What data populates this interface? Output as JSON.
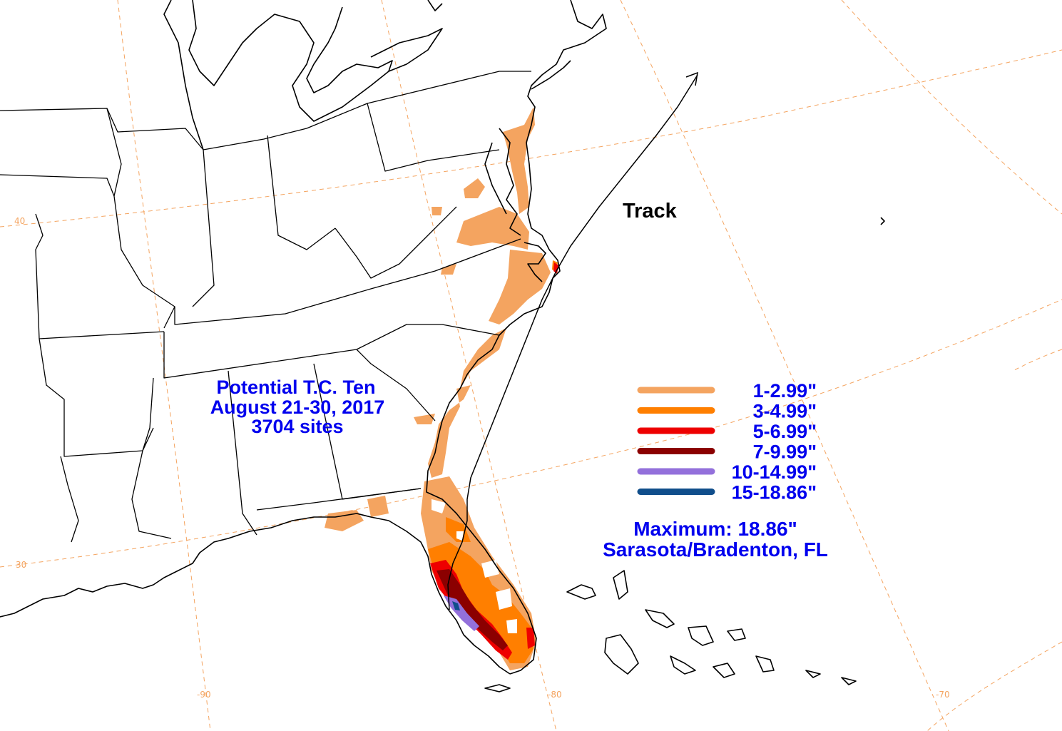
{
  "title": {
    "line1": "Potential T.C. Ten",
    "line2": "August 21-30, 2017",
    "line3": "3704 sites"
  },
  "track_label": "Track",
  "legend": [
    {
      "label": "1-2.99\"",
      "color": "#f4a460"
    },
    {
      "label": "3-4.99\"",
      "color": "#ff7f00"
    },
    {
      "label": "5-6.99\"",
      "color": "#ee0000"
    },
    {
      "label": "7-9.99\"",
      "color": "#8b0000"
    },
    {
      "label": "10-14.99\"",
      "color": "#9370db"
    },
    {
      "label": "15-18.86\"",
      "color": "#104e8b"
    }
  ],
  "maximum": {
    "line1": "Maximum: 18.86\"",
    "line2": "Sarasota/Bradenton, FL"
  },
  "grid_labels": {
    "lat30": "30",
    "lat40": "40",
    "lon90": "-90",
    "lon80": "-80",
    "lon70": "-70"
  },
  "colors": {
    "text": "#0000ee",
    "grid": "#f4a460",
    "background": "#ffffff"
  }
}
